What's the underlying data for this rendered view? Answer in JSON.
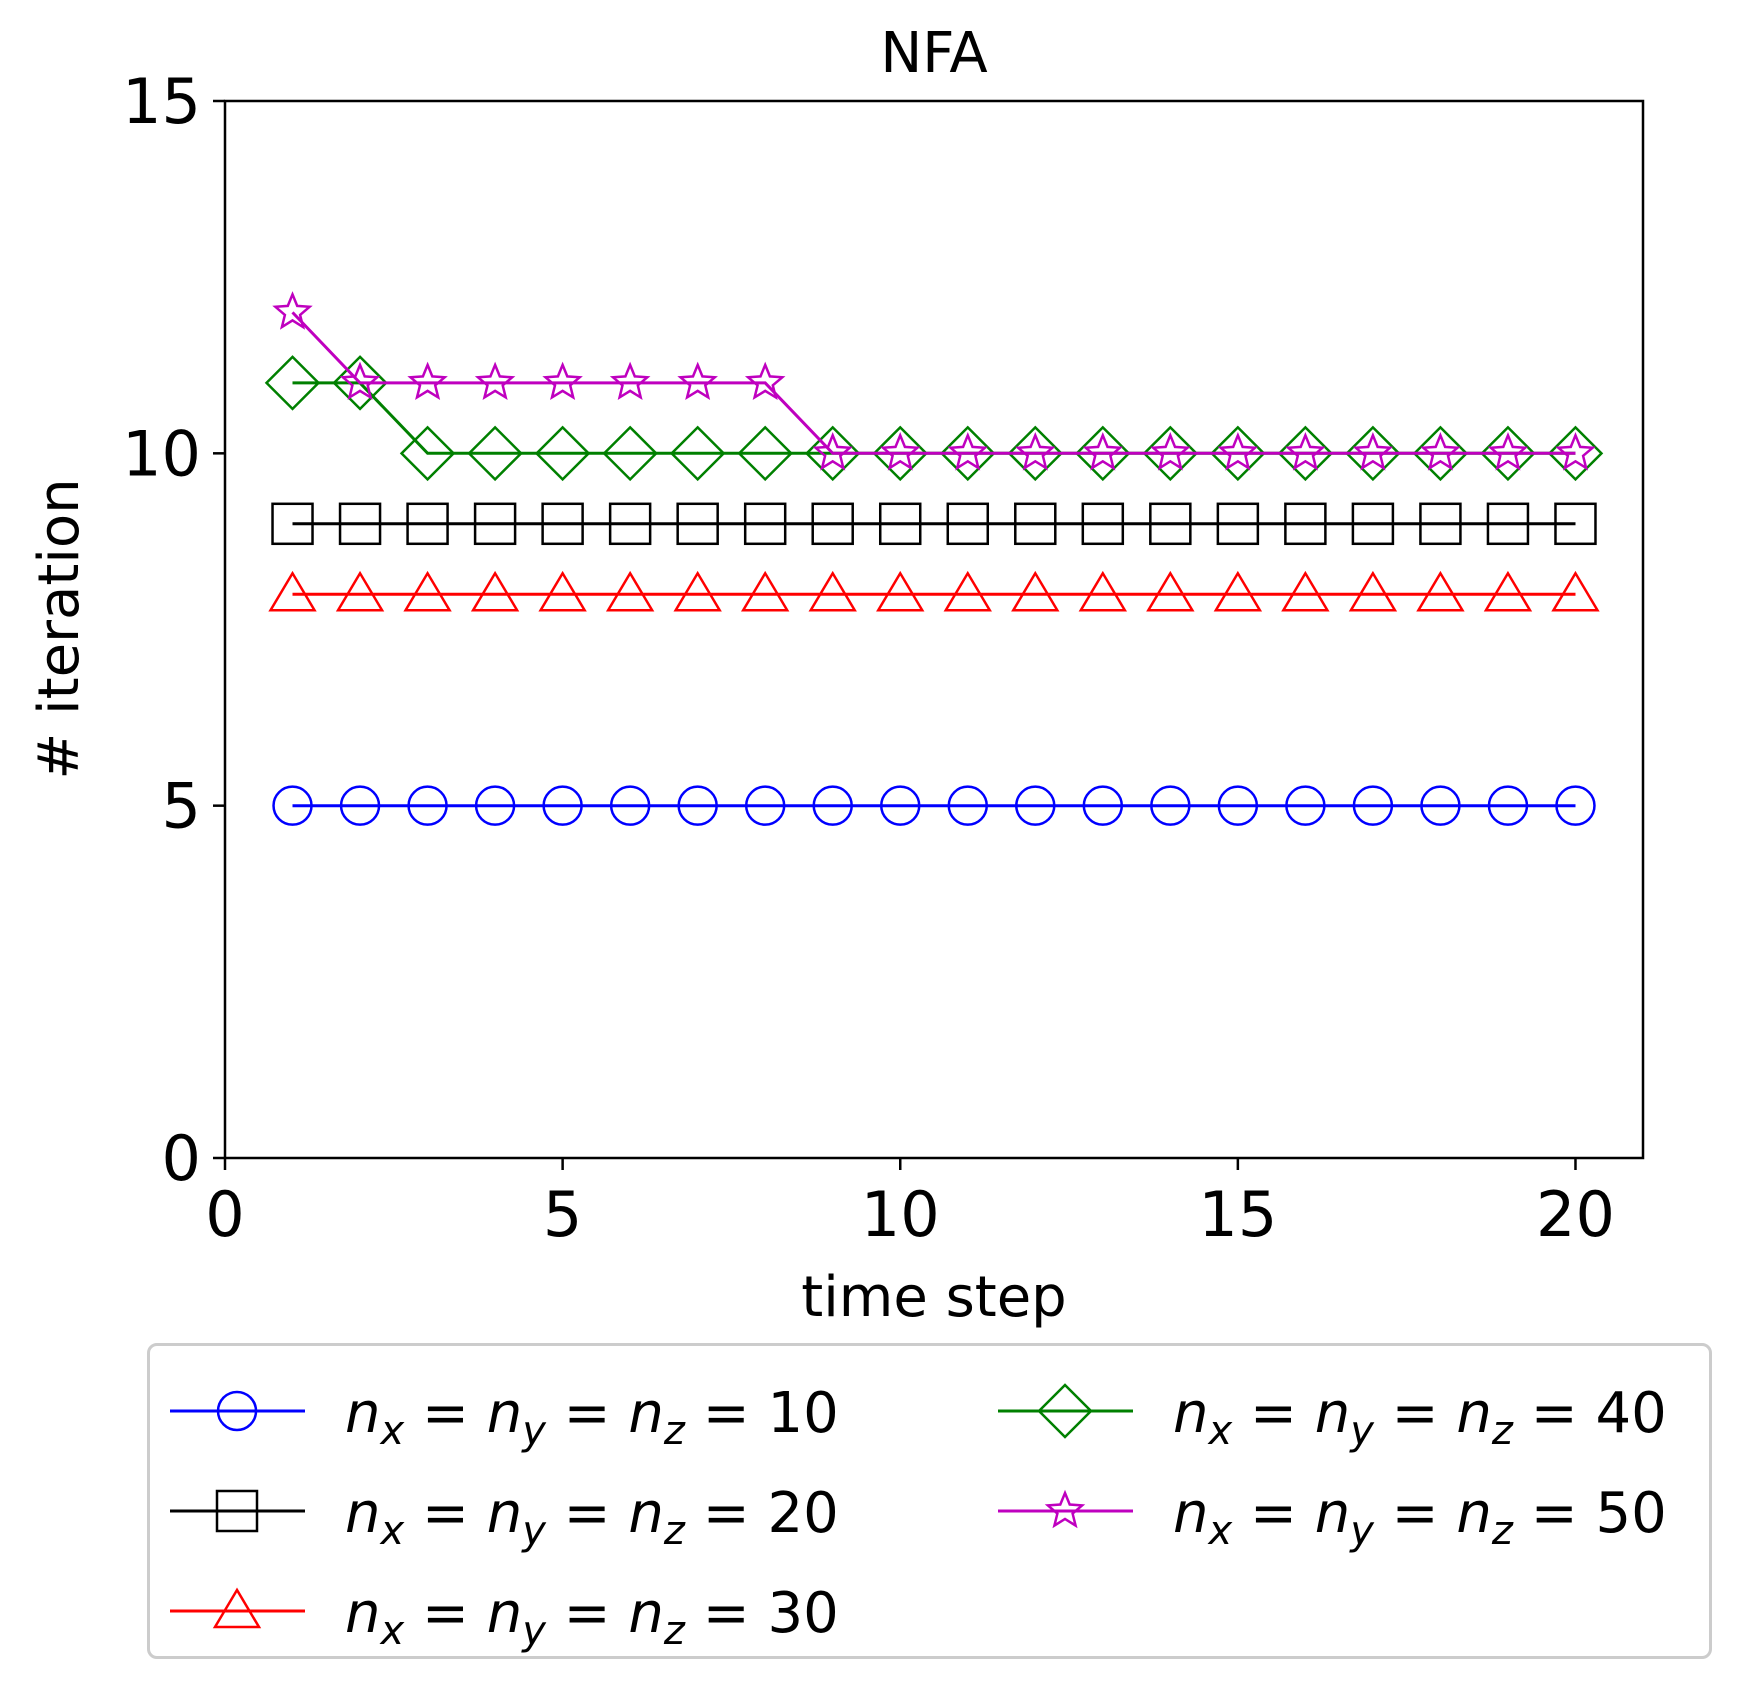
{
  "chart_data": {
    "type": "line",
    "title": "NFA",
    "xlabel": "time step",
    "ylabel": "# iteration",
    "xlim": [
      0,
      21
    ],
    "ylim": [
      0,
      15
    ],
    "xticks": [
      0,
      5,
      10,
      15,
      20
    ],
    "yticks": [
      0,
      5,
      10,
      15
    ],
    "x": [
      1,
      2,
      3,
      4,
      5,
      6,
      7,
      8,
      9,
      10,
      11,
      12,
      13,
      14,
      15,
      16,
      17,
      18,
      19,
      20
    ],
    "series": [
      {
        "name": "n_x = n_y = n_z = 10",
        "color": "#0000ff",
        "marker": "circle",
        "values": [
          5,
          5,
          5,
          5,
          5,
          5,
          5,
          5,
          5,
          5,
          5,
          5,
          5,
          5,
          5,
          5,
          5,
          5,
          5,
          5
        ]
      },
      {
        "name": "n_x = n_y = n_z = 20",
        "color": "#000000",
        "marker": "square",
        "values": [
          9,
          9,
          9,
          9,
          9,
          9,
          9,
          9,
          9,
          9,
          9,
          9,
          9,
          9,
          9,
          9,
          9,
          9,
          9,
          9
        ]
      },
      {
        "name": "n_x = n_y = n_z = 30",
        "color": "#ff0000",
        "marker": "triangle",
        "values": [
          8,
          8,
          8,
          8,
          8,
          8,
          8,
          8,
          8,
          8,
          8,
          8,
          8,
          8,
          8,
          8,
          8,
          8,
          8,
          8
        ]
      },
      {
        "name": "n_x = n_y = n_z = 40",
        "color": "#008000",
        "marker": "diamond",
        "values": [
          11,
          11,
          10,
          10,
          10,
          10,
          10,
          10,
          10,
          10,
          10,
          10,
          10,
          10,
          10,
          10,
          10,
          10,
          10,
          10
        ]
      },
      {
        "name": "n_x = n_y = n_z = 50",
        "color": "#bf00bf",
        "marker": "star",
        "values": [
          12,
          11,
          11,
          11,
          11,
          11,
          11,
          11,
          10,
          10,
          10,
          10,
          10,
          10,
          10,
          10,
          10,
          10,
          10,
          10
        ]
      }
    ],
    "legend": {
      "placement": "below",
      "entries": [
        {
          "var1": "n",
          "sub1": "x",
          "var2": "n",
          "sub2": "y",
          "var3": "n",
          "sub3": "z",
          "value": "10"
        },
        {
          "var1": "n",
          "sub1": "x",
          "var2": "n",
          "sub2": "y",
          "var3": "n",
          "sub3": "z",
          "value": "20"
        },
        {
          "var1": "n",
          "sub1": "x",
          "var2": "n",
          "sub2": "y",
          "var3": "n",
          "sub3": "z",
          "value": "30"
        },
        {
          "var1": "n",
          "sub1": "x",
          "var2": "n",
          "sub2": "y",
          "var3": "n",
          "sub3": "z",
          "value": "40"
        },
        {
          "var1": "n",
          "sub1": "x",
          "var2": "n",
          "sub2": "y",
          "var3": "n",
          "sub3": "z",
          "value": "50"
        }
      ]
    }
  }
}
